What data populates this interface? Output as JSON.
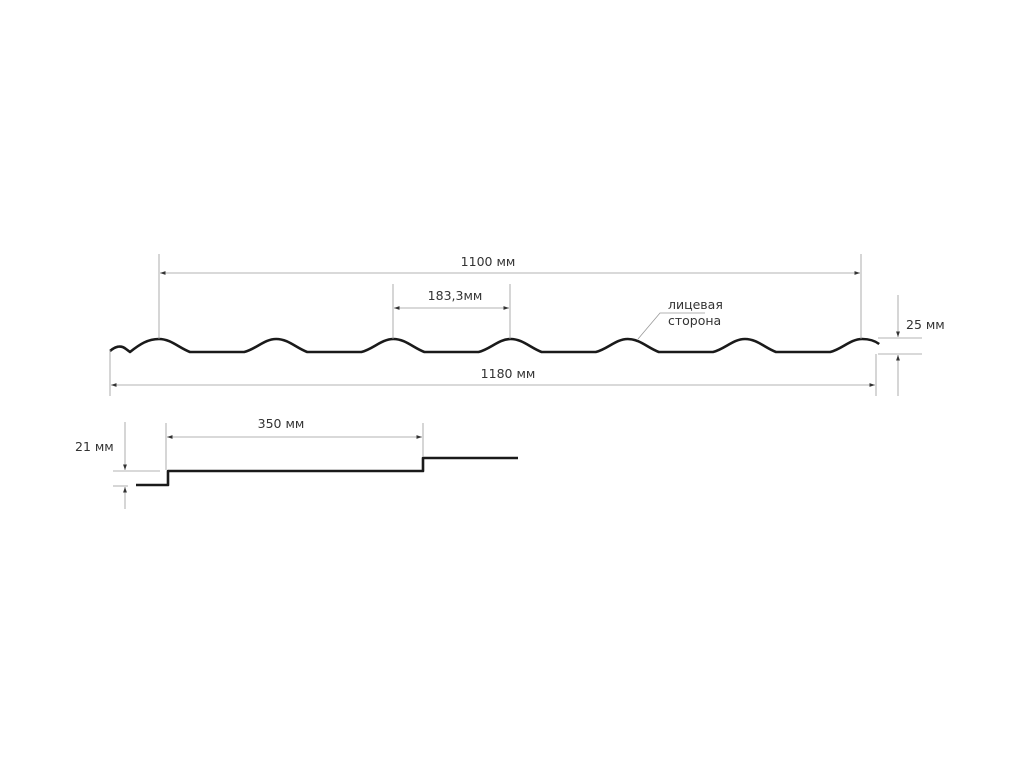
{
  "labels": {
    "total_cover_width": "1100 мм",
    "wave_pitch": "183,3мм",
    "full_width": "1180 мм",
    "profile_height": "25 мм",
    "face_side_line1": "лицевая",
    "face_side_line2": "сторона",
    "step_length": "350 мм",
    "step_height": "21 мм"
  },
  "colors": {
    "profile": "#1a1a1a",
    "dimension": "#9a9a9a"
  }
}
